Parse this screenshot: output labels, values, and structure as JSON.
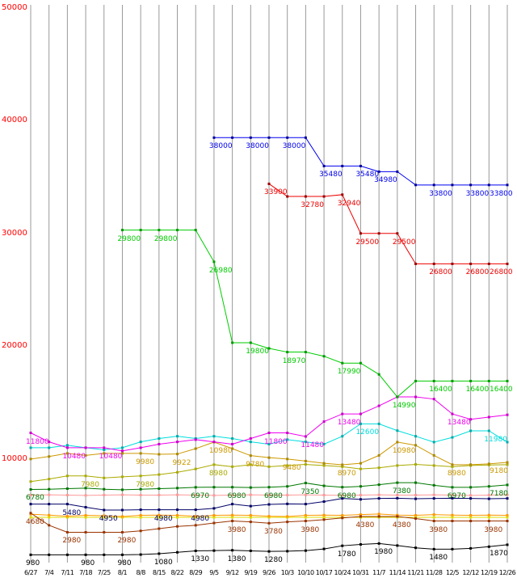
{
  "chart_data": {
    "type": "line",
    "title": "",
    "xlabel": "",
    "ylabel": "",
    "x_labels": [
      "6/27",
      "7/4",
      "7/11",
      "7/18",
      "7/25",
      "8/1",
      "8/8",
      "8/15",
      "8/22",
      "8/29",
      "9/5",
      "9/12",
      "9/19",
      "9/26",
      "10/3",
      "10/10",
      "10/17",
      "10/24",
      "10/31",
      "11/7",
      "11/14",
      "11/21",
      "11/28",
      "12/5",
      "12/12",
      "12/19",
      "12/26"
    ],
    "y_axis": {
      "min": 0,
      "max": 50000,
      "ticks": [
        10000,
        20000,
        30000,
        40000,
        50000
      ],
      "tick_color": "#ff0000"
    },
    "grid": {
      "vertical": true,
      "horizontal": false,
      "color": "#999999"
    },
    "legend": "none",
    "series": [
      {
        "name": "flat-yellow",
        "color": "#dddd00",
        "values": [
          4300,
          4300,
          4300,
          4300,
          4300,
          4300,
          4300,
          4300,
          4300,
          4300,
          4300,
          4300,
          4300,
          4300,
          4300,
          4300,
          4300,
          4300,
          4300,
          4300,
          4300,
          4300,
          4300,
          4300,
          4300,
          4300,
          4300
        ],
        "point_labels": []
      },
      {
        "name": "orange",
        "color": "#ff9900",
        "values": [
          4580,
          4500,
          4400,
          4480,
          4450,
          4380,
          4480,
          4500,
          4480,
          4400,
          4480,
          4500,
          4480,
          4400,
          4380,
          4480,
          4500,
          4480,
          4550,
          4600,
          4500,
          4480,
          4550,
          4500,
          4480,
          4500,
          4480
        ],
        "point_labels": []
      },
      {
        "name": "salmon",
        "color": "#ff9999",
        "values": [
          6280,
          6300,
          6280,
          6250,
          6280,
          6300,
          6280,
          6280,
          6300,
          6280,
          6250,
          6280,
          6300,
          6280,
          6280,
          6300,
          6280,
          6250,
          6280,
          6300,
          6280,
          6280,
          6300,
          6280,
          6250,
          6280,
          6300
        ],
        "point_labels": []
      },
      {
        "name": "navy",
        "color": "#000066",
        "values": [
          5480,
          5480,
          5480,
          5200,
          4950,
          4950,
          4980,
          4980,
          4980,
          4980,
          5100,
          5480,
          5300,
          5450,
          5500,
          5480,
          5700,
          5980,
          5900,
          5980,
          6000,
          5950,
          5980,
          6000,
          5980,
          5950,
          5980
        ],
        "point_labels": [
          {
            "i": 2,
            "t": "5480"
          },
          {
            "i": 4,
            "t": "4950"
          },
          {
            "i": 7,
            "t": "4980"
          },
          {
            "i": 9,
            "t": "4980"
          }
        ]
      },
      {
        "name": "maroon",
        "color": "#993300",
        "values": [
          4680,
          3600,
          2980,
          2980,
          2980,
          2980,
          3100,
          3300,
          3500,
          3600,
          3800,
          3980,
          3900,
          3780,
          3900,
          3980,
          4100,
          4250,
          4380,
          4380,
          4380,
          4200,
          3980,
          3980,
          3980,
          3980,
          3980
        ],
        "point_labels": [
          {
            "i": 0,
            "t": "4680"
          },
          {
            "i": 2,
            "t": "2980"
          },
          {
            "i": 5,
            "t": "2980"
          },
          {
            "i": 11,
            "t": "3980"
          },
          {
            "i": 13,
            "t": "3780"
          },
          {
            "i": 15,
            "t": "3980"
          },
          {
            "i": 18,
            "t": "4380"
          },
          {
            "i": 20,
            "t": "4380"
          },
          {
            "i": 22,
            "t": "3980"
          },
          {
            "i": 25,
            "t": "3980"
          }
        ]
      },
      {
        "name": "olive",
        "color": "#aaaa00",
        "values": [
          7480,
          7700,
          7980,
          7980,
          7800,
          7900,
          7980,
          8100,
          8300,
          8600,
          8980,
          8800,
          8980,
          8800,
          8900,
          9000,
          8900,
          8800,
          8600,
          8700,
          8900,
          9000,
          8900,
          8800,
          8900,
          8950,
          8980
        ],
        "point_labels": [
          {
            "i": 3,
            "t": "7980"
          },
          {
            "i": 6,
            "t": "7980"
          },
          {
            "i": 10,
            "t": "8980"
          }
        ]
      },
      {
        "name": "gold",
        "color": "#cc9900",
        "marker": "#aa8800",
        "values": [
          9480,
          9700,
          9980,
          9800,
          9980,
          9980,
          9980,
          9900,
          9922,
          10400,
          10980,
          10400,
          9780,
          9600,
          9480,
          9300,
          9100,
          8970,
          9100,
          9800,
          10980,
          10700,
          9800,
          8980,
          8980,
          9050,
          9180
        ],
        "point_labels": [
          {
            "i": 6,
            "t": "9980"
          },
          {
            "i": 8,
            "t": "9922"
          },
          {
            "i": 10,
            "t": "10980"
          },
          {
            "i": 12,
            "t": "9780"
          },
          {
            "i": 14,
            "t": "9480"
          },
          {
            "i": 17,
            "t": "8970"
          },
          {
            "i": 20,
            "t": "10980"
          },
          {
            "i": 23,
            "t": "8980"
          },
          {
            "i": 26,
            "t": "9180"
          }
        ]
      },
      {
        "name": "dark-green",
        "color": "#007700",
        "values": [
          6780,
          6800,
          6850,
          6900,
          6800,
          6750,
          6800,
          6850,
          6900,
          6970,
          6980,
          6980,
          6950,
          6980,
          7050,
          7350,
          7100,
          6980,
          7050,
          7200,
          7380,
          7380,
          7150,
          6970,
          6970,
          7050,
          7180
        ],
        "point_labels": [
          {
            "i": 0,
            "t": "6780"
          },
          {
            "i": 9,
            "t": "6970"
          },
          {
            "i": 11,
            "t": "6980"
          },
          {
            "i": 13,
            "t": "6980"
          },
          {
            "i": 15,
            "t": "7350"
          },
          {
            "i": 17,
            "t": "6980"
          },
          {
            "i": 20,
            "t": "7380"
          },
          {
            "i": 23,
            "t": "6970"
          },
          {
            "i": 26,
            "t": "7180"
          }
        ]
      },
      {
        "name": "cyan",
        "color": "#00dddd",
        "marker": "#00aaaa",
        "values": [
          10480,
          10480,
          10700,
          10480,
          10300,
          10480,
          11000,
          11300,
          11500,
          11300,
          11500,
          11300,
          11000,
          10800,
          11200,
          11000,
          10800,
          11500,
          12600,
          12600,
          12000,
          11500,
          10980,
          11400,
          11980,
          11980,
          10980
        ],
        "point_labels": [
          {
            "i": 18,
            "t": "12600"
          },
          {
            "i": 25,
            "t": "11980"
          }
        ]
      },
      {
        "name": "magenta",
        "color": "#ee00ee",
        "marker": "#cc00cc",
        "values": [
          11800,
          11000,
          10480,
          10480,
          10480,
          10200,
          10480,
          10800,
          11000,
          11200,
          11000,
          10800,
          11300,
          11800,
          11800,
          11480,
          12800,
          13480,
          13480,
          14200,
          14990,
          14990,
          14800,
          13480,
          13000,
          13200,
          13400
        ],
        "point_labels": [
          {
            "i": 0,
            "t": "11800"
          },
          {
            "i": 2,
            "t": "10480"
          },
          {
            "i": 4,
            "t": "10480"
          },
          {
            "i": 13,
            "t": "11800"
          },
          {
            "i": 15,
            "t": "11480"
          },
          {
            "i": 17,
            "t": "13480"
          },
          {
            "i": 23,
            "t": "13480"
          }
        ]
      },
      {
        "name": "black",
        "color": "#000000",
        "values": [
          980,
          980,
          980,
          980,
          980,
          980,
          1000,
          1080,
          1200,
          1330,
          1350,
          1380,
          1330,
          1280,
          1300,
          1350,
          1500,
          1780,
          1900,
          1980,
          1800,
          1600,
          1480,
          1480,
          1550,
          1700,
          1870
        ],
        "point_labels": [
          {
            "i": 0,
            "t": "980"
          },
          {
            "i": 3,
            "t": "980"
          },
          {
            "i": 5,
            "t": "980"
          },
          {
            "i": 7,
            "t": "1080"
          },
          {
            "i": 9,
            "t": "1330"
          },
          {
            "i": 11,
            "t": "1380"
          },
          {
            "i": 13,
            "t": "1280"
          },
          {
            "i": 17,
            "t": "1780"
          },
          {
            "i": 19,
            "t": "1980"
          },
          {
            "i": 22,
            "t": "1480"
          },
          {
            "i": 26,
            "t": "1870"
          }
        ]
      },
      {
        "name": "green",
        "color": "#00cc00",
        "marker": "#009900",
        "values": [
          null,
          null,
          null,
          null,
          null,
          29800,
          29800,
          29800,
          29800,
          29800,
          26980,
          19800,
          19800,
          19300,
          18970,
          18970,
          18600,
          17990,
          17990,
          16990,
          14990,
          16400,
          16400,
          16400,
          16400,
          16400,
          16400
        ],
        "point_labels": [
          {
            "i": 5,
            "t": "29800"
          },
          {
            "i": 7,
            "t": "29800"
          },
          {
            "i": 10,
            "t": "26980"
          },
          {
            "i": 12,
            "t": "19800"
          },
          {
            "i": 14,
            "t": "18970"
          },
          {
            "i": 17,
            "t": "17990"
          },
          {
            "i": 20,
            "t": "14990"
          },
          {
            "i": 22,
            "t": "16400"
          },
          {
            "i": 24,
            "t": "16400"
          },
          {
            "i": 26,
            "t": "16400"
          }
        ]
      },
      {
        "name": "red",
        "color": "#ee0000",
        "marker": "#990000",
        "values": [
          null,
          null,
          null,
          null,
          null,
          null,
          null,
          null,
          null,
          null,
          null,
          null,
          null,
          33900,
          32780,
          32780,
          32780,
          32940,
          29500,
          29500,
          29500,
          26800,
          26800,
          26800,
          26800,
          26800,
          26800
        ],
        "point_labels": [
          {
            "i": 13,
            "t": "33900"
          },
          {
            "i": 15,
            "t": "32780"
          },
          {
            "i": 17,
            "t": "32940"
          },
          {
            "i": 18,
            "t": "29500"
          },
          {
            "i": 20,
            "t": "29500"
          },
          {
            "i": 22,
            "t": "26800"
          },
          {
            "i": 24,
            "t": "26800"
          },
          {
            "i": 26,
            "t": "26800"
          }
        ]
      },
      {
        "name": "blue",
        "color": "#0000ee",
        "marker": "#000099",
        "values": [
          null,
          null,
          null,
          null,
          null,
          null,
          null,
          null,
          null,
          null,
          38000,
          38000,
          38000,
          38000,
          38000,
          38000,
          35480,
          35480,
          35480,
          34980,
          34980,
          33800,
          33800,
          33800,
          33800,
          33800,
          33800
        ],
        "point_labels": [
          {
            "i": 10,
            "t": "38000"
          },
          {
            "i": 12,
            "t": "38000"
          },
          {
            "i": 14,
            "t": "38000"
          },
          {
            "i": 16,
            "t": "35480"
          },
          {
            "i": 18,
            "t": "35480"
          },
          {
            "i": 19,
            "t": "34980"
          },
          {
            "i": 22,
            "t": "33800"
          },
          {
            "i": 24,
            "t": "33800"
          },
          {
            "i": 26,
            "t": "33800"
          }
        ]
      }
    ]
  }
}
